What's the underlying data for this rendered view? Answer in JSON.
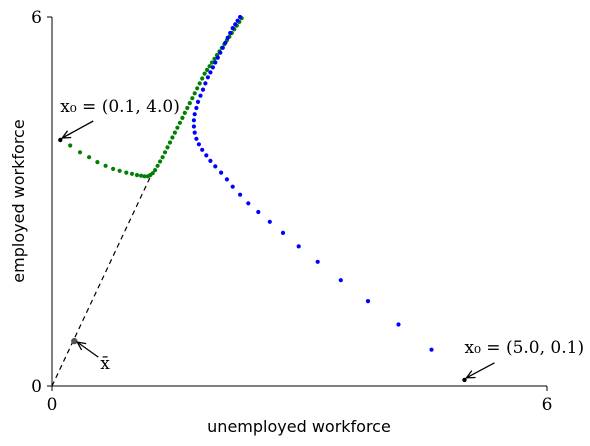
{
  "chart_data": {
    "type": "scatter",
    "xlabel": "unemployed workforce",
    "ylabel": "employed workforce",
    "xlim": [
      0,
      6
    ],
    "ylim": [
      0,
      6
    ],
    "x_ticks": [
      "0",
      "6"
    ],
    "y_ticks": [
      "0",
      "6"
    ],
    "grid": false,
    "colors": {
      "series_a": "#008000",
      "series_b": "#0000ff",
      "steady_state": "#555555",
      "ray": "#000000"
    },
    "steady_ray": {
      "from": [
        0.0,
        0.0
      ],
      "to": [
        1.22,
        3.48
      ],
      "style": "dashed"
    },
    "steady_state_point": {
      "x": 0.27,
      "y": 0.73,
      "label": "x̄"
    },
    "annotations": [
      {
        "text": "x₀ = (0.1, 4.0)",
        "point": [
          0.1,
          4.0
        ]
      },
      {
        "text": "x₀ = (5.0, 0.1)",
        "point": [
          5.0,
          0.1
        ]
      },
      {
        "text": "x̄",
        "point": [
          0.27,
          0.73
        ]
      }
    ],
    "series": [
      {
        "color": "#008000",
        "points": [
          [
            0.1,
            4.0
          ],
          [
            0.22,
            3.91
          ],
          [
            0.34,
            3.8
          ],
          [
            0.45,
            3.72
          ],
          [
            0.55,
            3.64
          ],
          [
            0.65,
            3.58
          ],
          [
            0.74,
            3.53
          ],
          [
            0.82,
            3.5
          ],
          [
            0.9,
            3.47
          ],
          [
            0.97,
            3.45
          ],
          [
            1.03,
            3.43
          ],
          [
            1.08,
            3.42
          ],
          [
            1.12,
            3.41
          ],
          [
            1.16,
            3.41
          ],
          [
            1.19,
            3.43
          ],
          [
            1.22,
            3.46
          ],
          [
            1.25,
            3.51
          ],
          [
            1.28,
            3.58
          ],
          [
            1.31,
            3.65
          ],
          [
            1.34,
            3.72
          ],
          [
            1.37,
            3.8
          ],
          [
            1.4,
            3.88
          ],
          [
            1.43,
            3.96
          ],
          [
            1.46,
            4.04
          ],
          [
            1.49,
            4.12
          ],
          [
            1.52,
            4.2
          ],
          [
            1.55,
            4.28
          ],
          [
            1.58,
            4.36
          ],
          [
            1.61,
            4.44
          ],
          [
            1.64,
            4.52
          ],
          [
            1.67,
            4.6
          ],
          [
            1.7,
            4.68
          ],
          [
            1.73,
            4.76
          ],
          [
            1.76,
            4.84
          ],
          [
            1.79,
            4.92
          ],
          [
            1.82,
            5.0
          ],
          [
            1.85,
            5.08
          ],
          [
            1.88,
            5.14
          ],
          [
            1.91,
            5.2
          ],
          [
            1.94,
            5.26
          ],
          [
            1.97,
            5.32
          ],
          [
            2.0,
            5.38
          ],
          [
            2.03,
            5.44
          ],
          [
            2.06,
            5.5
          ],
          [
            2.09,
            5.56
          ],
          [
            2.12,
            5.62
          ],
          [
            2.15,
            5.68
          ],
          [
            2.18,
            5.74
          ],
          [
            2.21,
            5.8
          ],
          [
            2.24,
            5.86
          ],
          [
            2.27,
            5.92
          ],
          [
            2.3,
            5.98
          ]
        ]
      },
      {
        "color": "#0000ff",
        "points": [
          [
            5.0,
            0.1
          ],
          [
            4.6,
            0.59
          ],
          [
            4.2,
            1.0
          ],
          [
            3.83,
            1.38
          ],
          [
            3.5,
            1.72
          ],
          [
            3.22,
            2.02
          ],
          [
            2.99,
            2.27
          ],
          [
            2.8,
            2.49
          ],
          [
            2.64,
            2.67
          ],
          [
            2.5,
            2.83
          ],
          [
            2.38,
            2.97
          ],
          [
            2.28,
            3.11
          ],
          [
            2.19,
            3.24
          ],
          [
            2.12,
            3.36
          ],
          [
            2.05,
            3.47
          ],
          [
            1.98,
            3.57
          ],
          [
            1.92,
            3.66
          ],
          [
            1.87,
            3.75
          ],
          [
            1.82,
            3.84
          ],
          [
            1.78,
            3.93
          ],
          [
            1.75,
            4.02
          ],
          [
            1.73,
            4.12
          ],
          [
            1.72,
            4.22
          ],
          [
            1.72,
            4.32
          ],
          [
            1.73,
            4.42
          ],
          [
            1.75,
            4.52
          ],
          [
            1.77,
            4.62
          ],
          [
            1.8,
            4.72
          ],
          [
            1.83,
            4.82
          ],
          [
            1.86,
            4.92
          ],
          [
            1.89,
            5.02
          ],
          [
            1.92,
            5.1
          ],
          [
            1.95,
            5.18
          ],
          [
            1.98,
            5.26
          ],
          [
            2.01,
            5.34
          ],
          [
            2.04,
            5.42
          ],
          [
            2.07,
            5.5
          ],
          [
            2.1,
            5.58
          ],
          [
            2.13,
            5.66
          ],
          [
            2.16,
            5.74
          ],
          [
            2.19,
            5.82
          ],
          [
            2.22,
            5.88
          ],
          [
            2.25,
            5.94
          ],
          [
            2.28,
            6.0
          ]
        ]
      }
    ]
  }
}
